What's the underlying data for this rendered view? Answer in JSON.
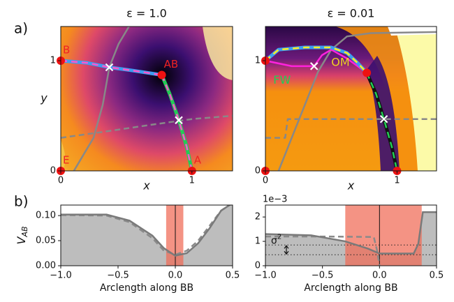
{
  "panel_labels": [
    "a)",
    "b)"
  ],
  "chart_data": [
    {
      "type": "field",
      "title": "ε = 1.0",
      "xlabel": "x",
      "ylabel": "y",
      "xlim": [
        0,
        1.31
      ],
      "ylim": [
        0,
        1.31
      ],
      "xticks": [
        0,
        1
      ],
      "yticks": [
        0,
        1
      ],
      "curves": [
        {
          "colors": [
            "#888888"
          ],
          "dash": false,
          "x": [
            0.1,
            0.15,
            0.25,
            0.32,
            0.37,
            0.44,
            0.52
          ],
          "y": [
            0,
            0.1,
            0.3,
            0.6,
            0.94,
            1.15,
            1.31
          ]
        },
        {
          "colors": [
            "#888888"
          ],
          "dash": true,
          "x": [
            0,
            0.3,
            0.7,
            1.0,
            1.31
          ],
          "y": [
            0.3,
            0.35,
            0.42,
            0.47,
            0.5
          ]
        },
        {
          "colors": [
            "#3d9df0",
            "#ff55cc"
          ],
          "dash": true,
          "x": [
            0,
            0.2,
            0.37,
            0.55,
            0.77
          ],
          "y": [
            1,
            0.98,
            0.94,
            0.91,
            0.87
          ]
        },
        {
          "colors": [
            "#22cc55",
            "#ff55cc"
          ],
          "dash": true,
          "x": [
            0.77,
            0.83,
            0.9,
            0.96,
            1
          ],
          "y": [
            0.87,
            0.7,
            0.46,
            0.22,
            0
          ]
        }
      ],
      "saddles": {
        "x": [
          0.37,
          0.9
        ],
        "y": [
          0.94,
          0.46
        ]
      },
      "points": [
        {
          "label": "B",
          "x": 0,
          "y": 1
        },
        {
          "label": "AB",
          "x": 0.77,
          "y": 0.87
        },
        {
          "label": "A",
          "x": 1,
          "y": 0
        },
        {
          "label": "E",
          "x": 0,
          "y": 0
        }
      ]
    },
    {
      "type": "field",
      "title": "ε = 0.01",
      "xlabel": "x",
      "xlim": [
        0,
        1.3
      ],
      "ylim": [
        0,
        1.31
      ],
      "xticks": [
        0,
        1
      ],
      "yticks": [
        0,
        1
      ],
      "curves": [
        {
          "colors": [
            "#888888"
          ],
          "dash": false,
          "x": [
            0.1,
            0.2,
            0.3,
            0.4,
            0.5,
            0.62,
            0.8,
            1.3
          ],
          "y": [
            0,
            0.3,
            0.6,
            0.9,
            1.1,
            1.22,
            1.25,
            1.26
          ]
        },
        {
          "colors": [
            "#888888"
          ],
          "dash": true,
          "x": [
            0,
            0.15,
            0.17,
            0.5,
            1.3
          ],
          "y": [
            0.3,
            0.3,
            0.47,
            0.47,
            0.47
          ]
        },
        {
          "colors": [
            "#ff22dd"
          ],
          "dash": false,
          "x": [
            0,
            0.2,
            0.37,
            0.43,
            0.5,
            0.62,
            0.77
          ],
          "y": [
            1,
            0.95,
            0.95,
            1.05,
            1.1,
            1.02,
            0.89
          ]
        },
        {
          "colors": [
            "#3d9df0",
            "#ffee22"
          ],
          "dash": true,
          "x": [
            0,
            0.1,
            0.3,
            0.5,
            0.62,
            0.7,
            0.77
          ],
          "y": [
            1,
            1.1,
            1.12,
            1.12,
            1.07,
            0.98,
            0.89
          ]
        },
        {
          "colors": [
            "#111111",
            "#22cc55"
          ],
          "dash": true,
          "x": [
            0.77,
            0.84,
            0.9,
            0.96,
            1
          ],
          "y": [
            0.89,
            0.7,
            0.47,
            0.22,
            0
          ]
        }
      ],
      "saddles": {
        "x": [
          0.37,
          0.9
        ],
        "y": [
          0.95,
          0.47
        ]
      },
      "points": [
        {
          "x": 0,
          "y": 1
        },
        {
          "x": 0.77,
          "y": 0.89
        },
        {
          "x": 1,
          "y": 0
        },
        {
          "x": 0,
          "y": 0
        }
      ],
      "annotations": [
        {
          "text": "FW",
          "x": 0.06,
          "y": 0.82,
          "color": "#22cc55"
        },
        {
          "text": "OM",
          "x": 0.5,
          "y": 0.98,
          "color": "#f0d020"
        }
      ]
    },
    {
      "type": "area",
      "xlabel": "Arclength along BB",
      "ylabel": {
        "main": "V",
        "sub": "AB"
      },
      "xlim": [
        -1,
        0.5
      ],
      "ylim": [
        0,
        0.121
      ],
      "xticks": [
        {
          "value": -1,
          "label": "−1.0"
        },
        {
          "value": -0.5,
          "label": "−0.5"
        },
        {
          "value": 0,
          "label": "0.0"
        },
        0.5
      ],
      "yticks": [
        {
          "value": 0,
          "label": "0.00"
        },
        {
          "value": 0.05,
          "label": "0.05"
        },
        {
          "value": 0.1,
          "label": "0.10"
        }
      ],
      "band": [
        -0.08,
        0.07
      ],
      "vline": 0,
      "solid": {
        "x": [
          -1,
          -0.6,
          -0.4,
          -0.2,
          -0.1,
          0,
          0.1,
          0.2,
          0.3,
          0.4,
          0.5
        ],
        "y": [
          0.102,
          0.102,
          0.09,
          0.06,
          0.035,
          0.02,
          0.025,
          0.045,
          0.075,
          0.11,
          0.125
        ]
      },
      "dashed": {
        "x": [
          -1,
          -0.6,
          -0.4,
          -0.2,
          -0.1,
          0,
          0.1,
          0.2,
          0.3,
          0.4,
          0.5
        ],
        "y": [
          0.101,
          0.1,
          0.087,
          0.055,
          0.03,
          0.022,
          0.03,
          0.05,
          0.08,
          0.11,
          0.125
        ]
      }
    },
    {
      "type": "area",
      "xlabel": "Arclength along BB",
      "offset_text": "1e−3",
      "xlim": [
        -1,
        0.5
      ],
      "ylim": [
        0,
        2.49
      ],
      "xticks": [
        {
          "value": -1,
          "label": "−1.0"
        },
        {
          "value": -0.5,
          "label": "−0.5"
        },
        {
          "value": 0,
          "label": "0.0"
        },
        0.5
      ],
      "yticks": [
        0,
        1,
        2
      ],
      "band": [
        -0.3,
        0.37
      ],
      "vline": 0,
      "hlines": [
        0.85,
        0.45
      ],
      "sigma_label": {
        "main": "σ",
        "sup": "2"
      },
      "solid": {
        "x": [
          -1,
          -0.6,
          -0.3,
          -0.1,
          0,
          0.1,
          0.3,
          0.34,
          0.38,
          0.5
        ],
        "y": [
          1.3,
          1.25,
          1.0,
          0.7,
          0.5,
          0.5,
          0.5,
          0.9,
          2.2,
          2.2
        ]
      },
      "dashed": {
        "x": [
          -1,
          -0.5,
          -0.05,
          -0.02,
          0
        ],
        "y": [
          1.2,
          1.2,
          1.18,
          0.6,
          0
        ]
      }
    }
  ]
}
